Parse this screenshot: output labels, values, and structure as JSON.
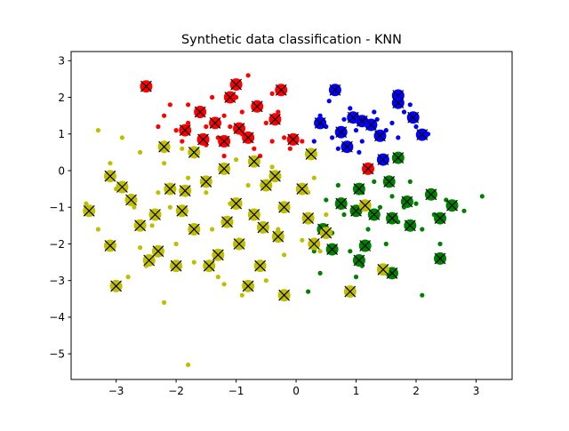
{
  "chart_data": {
    "type": "scatter",
    "title": "Synthetic data classification - KNN",
    "xlabel": "",
    "ylabel": "",
    "xlim": [
      -3.75,
      3.6
    ],
    "ylim": [
      -5.7,
      3.25
    ],
    "xticks": [
      -3,
      -2,
      -1,
      0,
      1,
      2,
      3
    ],
    "yticks": [
      -5,
      -4,
      -3,
      -2,
      -1,
      0,
      1,
      2,
      3
    ],
    "xtick_labels": [
      "−3",
      "−2",
      "−1",
      "0",
      "1",
      "2",
      "3"
    ],
    "ytick_labels": [
      "−5",
      "−4",
      "−3",
      "−2",
      "−1",
      "0",
      "1",
      "2",
      "3"
    ],
    "grid": false,
    "legend": "none",
    "classes": [
      {
        "color": "#ff0000",
        "points": [
          [
            -1.8,
            1.8
          ],
          [
            -1.5,
            1.2
          ],
          [
            -1.2,
            1.5
          ],
          [
            -0.9,
            1.0
          ],
          [
            -0.6,
            1.7
          ],
          [
            -0.4,
            2.1
          ],
          [
            -2.0,
            1.1
          ],
          [
            -1.0,
            2.0
          ],
          [
            -0.7,
            0.6
          ],
          [
            -1.7,
            0.6
          ],
          [
            -1.3,
            0.9
          ],
          [
            -0.5,
            1.3
          ],
          [
            -0.2,
            0.9
          ],
          [
            -2.2,
            1.5
          ],
          [
            -1.6,
            1.5
          ],
          [
            -1.1,
            1.2
          ],
          [
            -0.8,
            2.6
          ],
          [
            -1.4,
            2.0
          ],
          [
            -0.3,
            1.6
          ],
          [
            -2.3,
            1.2
          ],
          [
            -0.1,
            0.6
          ],
          [
            0.1,
            0.8
          ],
          [
            -1.9,
            0.8
          ],
          [
            -1.2,
            0.4
          ],
          [
            -0.6,
            0.4
          ],
          [
            -2.1,
            1.8
          ],
          [
            -1.5,
            0.7
          ],
          [
            -0.9,
            1.6
          ],
          [
            -0.4,
            0.8
          ],
          [
            -1.8,
            1.3
          ]
        ],
        "large": [
          [
            -2.5,
            2.3
          ],
          [
            -1.0,
            2.35
          ],
          [
            -0.25,
            2.2
          ],
          [
            -1.1,
            2.0
          ],
          [
            -1.6,
            1.6
          ],
          [
            -1.35,
            1.3
          ],
          [
            -0.95,
            1.15
          ],
          [
            -0.65,
            1.75
          ],
          [
            -0.35,
            1.4
          ],
          [
            -1.85,
            1.1
          ],
          [
            -1.2,
            0.8
          ],
          [
            -0.05,
            0.85
          ],
          [
            -1.55,
            0.85
          ],
          [
            -0.8,
            0.9
          ],
          [
            1.2,
            0.05
          ]
        ]
      },
      {
        "color": "#0000ff",
        "points": [
          [
            0.5,
            1.2
          ],
          [
            0.8,
            1.4
          ],
          [
            1.0,
            1.1
          ],
          [
            1.3,
            1.6
          ],
          [
            1.6,
            1.3
          ],
          [
            1.9,
            1.8
          ],
          [
            0.6,
            0.9
          ],
          [
            1.1,
            0.8
          ],
          [
            1.4,
            0.9
          ],
          [
            0.9,
            1.7
          ],
          [
            1.7,
            0.9
          ],
          [
            2.0,
            1.2
          ],
          [
            0.4,
            1.5
          ],
          [
            1.2,
            1.3
          ],
          [
            1.5,
            1.1
          ],
          [
            0.7,
            0.6
          ],
          [
            1.8,
            1.6
          ],
          [
            1.05,
            0.5
          ],
          [
            0.3,
            0.8
          ],
          [
            1.35,
            1.4
          ],
          [
            2.2,
            1.0
          ],
          [
            0.55,
            1.9
          ],
          [
            1.75,
            2.0
          ],
          [
            0.95,
            1.45
          ]
        ],
        "large": [
          [
            0.65,
            2.2
          ],
          [
            1.7,
            2.05
          ],
          [
            1.7,
            1.85
          ],
          [
            1.95,
            1.45
          ],
          [
            0.95,
            1.45
          ],
          [
            1.1,
            1.35
          ],
          [
            1.25,
            1.25
          ],
          [
            0.75,
            1.05
          ],
          [
            1.4,
            0.95
          ],
          [
            2.1,
            0.98
          ],
          [
            0.85,
            0.65
          ],
          [
            1.45,
            0.3
          ],
          [
            0.4,
            1.3
          ]
        ]
      },
      {
        "color": "#008000",
        "points": [
          [
            0.5,
            -0.8
          ],
          [
            0.8,
            -1.2
          ],
          [
            1.1,
            -0.6
          ],
          [
            1.4,
            -1.0
          ],
          [
            1.7,
            -1.4
          ],
          [
            2.0,
            -0.9
          ],
          [
            2.3,
            -1.2
          ],
          [
            0.6,
            -1.7
          ],
          [
            0.9,
            -2.2
          ],
          [
            1.2,
            -1.6
          ],
          [
            1.5,
            -2.0
          ],
          [
            1.8,
            -1.0
          ],
          [
            2.1,
            -1.6
          ],
          [
            0.7,
            -0.4
          ],
          [
            1.0,
            -1.0
          ],
          [
            1.3,
            -0.3
          ],
          [
            1.6,
            -0.7
          ],
          [
            1.9,
            -0.3
          ],
          [
            2.5,
            -0.8
          ],
          [
            2.8,
            -1.1
          ],
          [
            3.1,
            -0.7
          ],
          [
            0.4,
            -2.8
          ],
          [
            1.1,
            -2.6
          ],
          [
            2.1,
            -3.4
          ],
          [
            0.2,
            -3.3
          ],
          [
            1.5,
            -2.8
          ],
          [
            0.3,
            -2.2
          ],
          [
            1.0,
            -2.9
          ],
          [
            1.6,
            -1.2
          ],
          [
            2.4,
            -2.0
          ]
        ],
        "large": [
          [
            1.7,
            0.35
          ],
          [
            1.55,
            -0.3
          ],
          [
            1.05,
            -0.5
          ],
          [
            0.75,
            -0.9
          ],
          [
            1.0,
            -1.1
          ],
          [
            1.3,
            -1.2
          ],
          [
            1.6,
            -1.3
          ],
          [
            1.9,
            -1.5
          ],
          [
            2.25,
            -0.65
          ],
          [
            2.6,
            -0.95
          ],
          [
            2.4,
            -1.3
          ],
          [
            1.15,
            -2.05
          ],
          [
            1.05,
            -2.45
          ],
          [
            0.6,
            -2.15
          ],
          [
            1.6,
            -2.8
          ],
          [
            2.4,
            -2.4
          ],
          [
            0.45,
            -1.6
          ],
          [
            1.85,
            -0.85
          ]
        ]
      },
      {
        "color": "#bfbf00",
        "points": [
          [
            -3.3,
            1.1
          ],
          [
            -2.9,
            0.9
          ],
          [
            -2.6,
            0.5
          ],
          [
            -2.2,
            0.2
          ],
          [
            -1.8,
            -0.2
          ],
          [
            -1.5,
            -0.6
          ],
          [
            -1.1,
            -0.9
          ],
          [
            -0.7,
            -1.3
          ],
          [
            -0.3,
            -1.6
          ],
          [
            0.1,
            -1.9
          ],
          [
            0.4,
            -2.2
          ],
          [
            -3.0,
            -0.5
          ],
          [
            -2.7,
            -1.0
          ],
          [
            -2.4,
            -1.5
          ],
          [
            -2.0,
            -2.0
          ],
          [
            -1.7,
            -2.5
          ],
          [
            -1.3,
            -2.9
          ],
          [
            -0.9,
            -3.4
          ],
          [
            -1.8,
            -5.3
          ],
          [
            -2.2,
            -3.6
          ],
          [
            -3.3,
            -1.6
          ],
          [
            -3.5,
            -0.9
          ],
          [
            -2.8,
            -2.9
          ],
          [
            -2.5,
            -2.6
          ],
          [
            -1.0,
            0.3
          ],
          [
            -0.4,
            0.1
          ],
          [
            0.2,
            -0.6
          ],
          [
            -0.6,
            -2.7
          ],
          [
            -0.2,
            -2.3
          ],
          [
            -1.4,
            -1.6
          ],
          [
            -2.1,
            -1.0
          ],
          [
            -0.8,
            -0.4
          ],
          [
            -1.9,
            0.6
          ],
          [
            -2.3,
            -0.6
          ],
          [
            0.5,
            -1.2
          ],
          [
            -3.1,
            0.2
          ],
          [
            -1.2,
            -3.1
          ],
          [
            -0.5,
            -3.0
          ],
          [
            0.3,
            -0.2
          ],
          [
            -2.6,
            -2.1
          ]
        ],
        "large": [
          [
            -3.45,
            -1.1
          ],
          [
            -3.1,
            -0.15
          ],
          [
            -3.1,
            -2.05
          ],
          [
            -3.0,
            -3.15
          ],
          [
            -2.45,
            -2.45
          ],
          [
            -2.3,
            -2.2
          ],
          [
            -2.0,
            -2.6
          ],
          [
            -2.75,
            -0.8
          ],
          [
            -2.6,
            -1.5
          ],
          [
            -2.35,
            -1.2
          ],
          [
            -2.1,
            -0.5
          ],
          [
            -1.9,
            -1.1
          ],
          [
            -1.7,
            -1.6
          ],
          [
            -1.5,
            -0.3
          ],
          [
            -1.3,
            -2.3
          ],
          [
            -1.15,
            -1.4
          ],
          [
            -1.0,
            -0.9
          ],
          [
            -0.95,
            -2.0
          ],
          [
            -0.8,
            -3.15
          ],
          [
            -0.7,
            -1.2
          ],
          [
            -0.6,
            -2.6
          ],
          [
            -0.5,
            -0.4
          ],
          [
            -0.3,
            -1.8
          ],
          [
            -0.2,
            -1.0
          ],
          [
            -0.2,
            -3.4
          ],
          [
            0.1,
            -0.5
          ],
          [
            0.2,
            -1.3
          ],
          [
            0.3,
            -2.0
          ],
          [
            0.5,
            -1.7
          ],
          [
            0.9,
            -3.3
          ],
          [
            1.15,
            -0.95
          ],
          [
            1.45,
            -2.7
          ],
          [
            -2.2,
            0.65
          ],
          [
            -1.7,
            0.5
          ],
          [
            -1.2,
            0.05
          ],
          [
            -0.7,
            0.25
          ],
          [
            -0.35,
            -0.15
          ],
          [
            0.25,
            0.45
          ],
          [
            -2.9,
            -0.45
          ],
          [
            -1.45,
            -2.6
          ],
          [
            -0.55,
            -1.55
          ],
          [
            -1.85,
            -0.55
          ]
        ]
      }
    ]
  }
}
